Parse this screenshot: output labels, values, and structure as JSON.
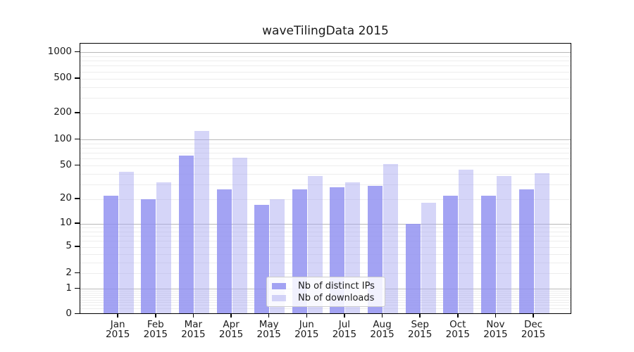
{
  "title": "waveTilingData 2015",
  "colors": {
    "ips_bar": "rgba(143,143,240,0.82)",
    "downloads_bar": "rgba(165,165,240,0.47)",
    "grid_major": "#b9b9b9",
    "grid_minor": "#ededed",
    "axis": "#000000",
    "text": "#1a1a1a",
    "legend_border": "#cccccc"
  },
  "legend": {
    "items": [
      {
        "label": "Nb of distinct IPs"
      },
      {
        "label": "Nb of downloads"
      }
    ]
  },
  "chart_data": {
    "type": "bar",
    "title": "waveTilingData 2015",
    "categories": [
      "Jan 2015",
      "Feb 2015",
      "Mar 2015",
      "Apr 2015",
      "May 2015",
      "Jun 2015",
      "Jul 2015",
      "Aug 2015",
      "Sep 2015",
      "Oct 2015",
      "Nov 2015",
      "Dec 2015"
    ],
    "series": [
      {
        "name": "Nb of distinct IPs",
        "values": [
          22,
          20,
          65,
          26,
          17,
          26,
          28,
          29,
          10,
          22,
          22,
          26
        ]
      },
      {
        "name": "Nb of downloads",
        "values": [
          42,
          32,
          125,
          62,
          20,
          38,
          32,
          52,
          18,
          45,
          38,
          41
        ]
      }
    ],
    "xlabel": "",
    "ylabel": "",
    "yscale": "log1p",
    "yticks": [
      0,
      1,
      2,
      5,
      10,
      20,
      50,
      100,
      200,
      500,
      1000
    ],
    "ylim": [
      0,
      1250
    ],
    "grid": true,
    "legend_position": "lower center"
  }
}
